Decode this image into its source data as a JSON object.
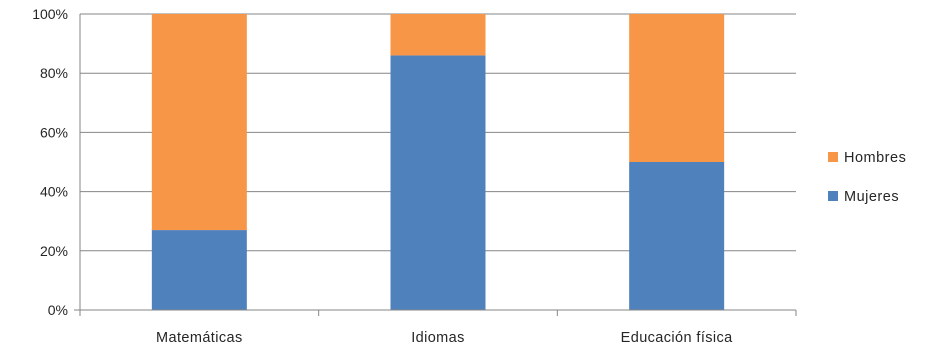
{
  "chart_data": {
    "type": "bar",
    "stacked": "percent",
    "title": "",
    "xlabel": "",
    "ylabel": "",
    "categories": [
      "Matemáticas",
      "Idiomas",
      "Educación física"
    ],
    "series": [
      {
        "name": "Mujeres",
        "values": [
          27,
          86,
          50
        ],
        "color": "#4F81BD"
      },
      {
        "name": "Hombres",
        "values": [
          73,
          14,
          50
        ],
        "color": "#F79646"
      }
    ],
    "ylim": [
      0,
      100
    ],
    "yticks": [
      "0%",
      "20%",
      "40%",
      "60%",
      "80%",
      "100%"
    ],
    "grid": true,
    "legend_position": "right"
  }
}
